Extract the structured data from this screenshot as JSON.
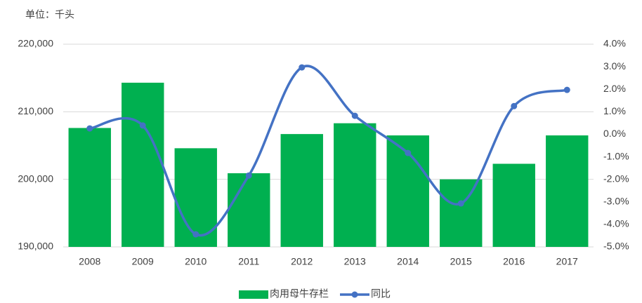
{
  "chart_data": {
    "type": "bar-line",
    "unit_label": "单位：千头",
    "categories": [
      "2008",
      "2009",
      "2010",
      "2011",
      "2012",
      "2013",
      "2014",
      "2015",
      "2016",
      "2017"
    ],
    "series": [
      {
        "name": "肉用母牛存栏",
        "type": "bar",
        "color": "#00b050",
        "values": [
          207600,
          214300,
          204600,
          200900,
          206700,
          208300,
          206500,
          200000,
          202300,
          206500
        ]
      },
      {
        "name": "同比",
        "type": "line",
        "axis": "y2",
        "color": "#4472c4",
        "values": [
          0.26,
          0.39,
          -4.44,
          -1.83,
          2.97,
          0.82,
          -0.83,
          -3.07,
          1.25,
          1.97
        ]
      }
    ],
    "ylim": [
      190000,
      220000
    ],
    "yticks": [
      {
        "value": 190000,
        "label": "190,000"
      },
      {
        "value": 200000,
        "label": "200,000"
      },
      {
        "value": 210000,
        "label": "210,000"
      },
      {
        "value": 220000,
        "label": "220,000"
      }
    ],
    "y2lim": [
      -5,
      4
    ],
    "y2ticks": [
      {
        "value": -5,
        "label": "-5.0%"
      },
      {
        "value": -4,
        "label": "-4.0%"
      },
      {
        "value": -3,
        "label": "-3.0%"
      },
      {
        "value": -2,
        "label": "-2.0%"
      },
      {
        "value": -1,
        "label": "-1.0%"
      },
      {
        "value": 0,
        "label": "0.0%"
      },
      {
        "value": 1,
        "label": "1.0%"
      },
      {
        "value": 2,
        "label": "2.0%"
      },
      {
        "value": 3,
        "label": "3.0%"
      },
      {
        "value": 4,
        "label": "4.0%"
      }
    ],
    "grid": true,
    "legend": "bottom"
  }
}
